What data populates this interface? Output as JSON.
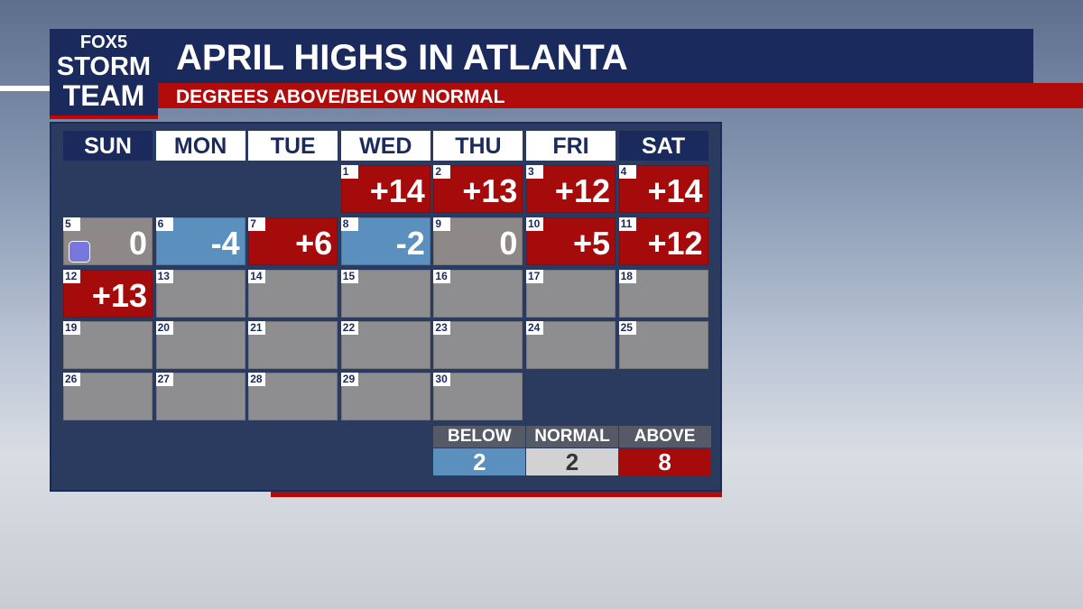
{
  "header": {
    "logo": [
      "FOX5",
      "STORM",
      "TEAM"
    ],
    "title": "APRIL HIGHS IN ATLANTA",
    "subtitle": "DEGREES ABOVE/BELOW NORMAL"
  },
  "calendar": {
    "days": [
      "SUN",
      "MON",
      "TUE",
      "WED",
      "THU",
      "FRI",
      "SAT"
    ],
    "weeks": [
      [
        null,
        null,
        null,
        {
          "day": 1,
          "value": "+14"
        },
        {
          "day": 2,
          "value": "+13"
        },
        {
          "day": 3,
          "value": "+12"
        },
        {
          "day": 4,
          "value": "+14"
        }
      ],
      [
        {
          "day": 5,
          "value": "0"
        },
        {
          "day": 6,
          "value": "-4"
        },
        {
          "day": 7,
          "value": "+6"
        },
        {
          "day": 8,
          "value": "-2"
        },
        {
          "day": 9,
          "value": "0"
        },
        {
          "day": 10,
          "value": "+5"
        },
        {
          "day": 11,
          "value": "+12"
        }
      ],
      [
        {
          "day": 12,
          "value": "+13"
        },
        {
          "day": 13
        },
        {
          "day": 14
        },
        {
          "day": 15
        },
        {
          "day": 16
        },
        {
          "day": 17
        },
        {
          "day": 18
        }
      ],
      [
        {
          "day": 19
        },
        {
          "day": 20
        },
        {
          "day": 21
        },
        {
          "day": 22
        },
        {
          "day": 23
        },
        {
          "day": 24
        },
        {
          "day": 25
        }
      ],
      [
        {
          "day": 26
        },
        {
          "day": 27
        },
        {
          "day": 28
        },
        {
          "day": 29
        },
        {
          "day": 30
        }
      ]
    ]
  },
  "legend": [
    {
      "label": "BELOW",
      "count": 2,
      "color": "#5b8fbe"
    },
    {
      "label": "NORMAL",
      "count": 2,
      "color": "#d2d2d4"
    },
    {
      "label": "ABOVE",
      "count": 8,
      "color": "#a50b0b"
    }
  ]
}
